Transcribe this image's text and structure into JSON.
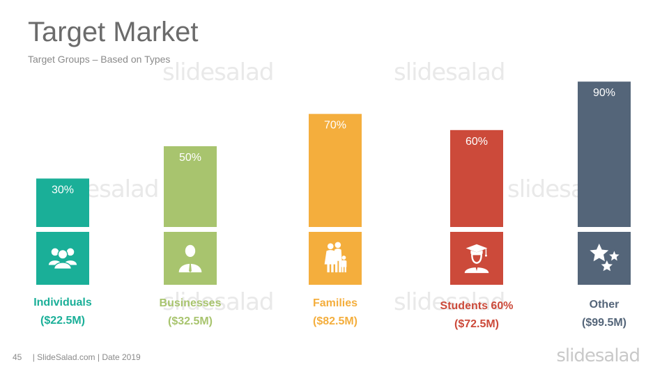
{
  "slide": {
    "title": "Target Market",
    "subtitle": "Target Groups – Based on Types",
    "watermark_text": "slidesalad",
    "footer": {
      "page_number": "45",
      "text": "| SlideSalad.com | Date 2019"
    },
    "logo_text": "slidesalad"
  },
  "chart_data": {
    "type": "bar",
    "ylim": [
      0,
      100
    ],
    "categories": [
      "Individuals",
      "Businesses",
      "Families",
      "Students 60%",
      "Other"
    ],
    "values": [
      30,
      50,
      70,
      60,
      90
    ],
    "value_labels": [
      "30%",
      "50%",
      "70%",
      "60%",
      "90%"
    ],
    "amounts": [
      "($22.5M)",
      "($32.5M)",
      "($82.5M)",
      "($72.5M)",
      "($99.5M)"
    ],
    "colors": [
      "#1aaf98",
      "#a8c46e",
      "#f4ae3d",
      "#cc4a3a",
      "#546579"
    ],
    "icons": [
      "group-icon",
      "businessman-icon",
      "family-icon",
      "graduate-icon",
      "stars-icon"
    ]
  }
}
